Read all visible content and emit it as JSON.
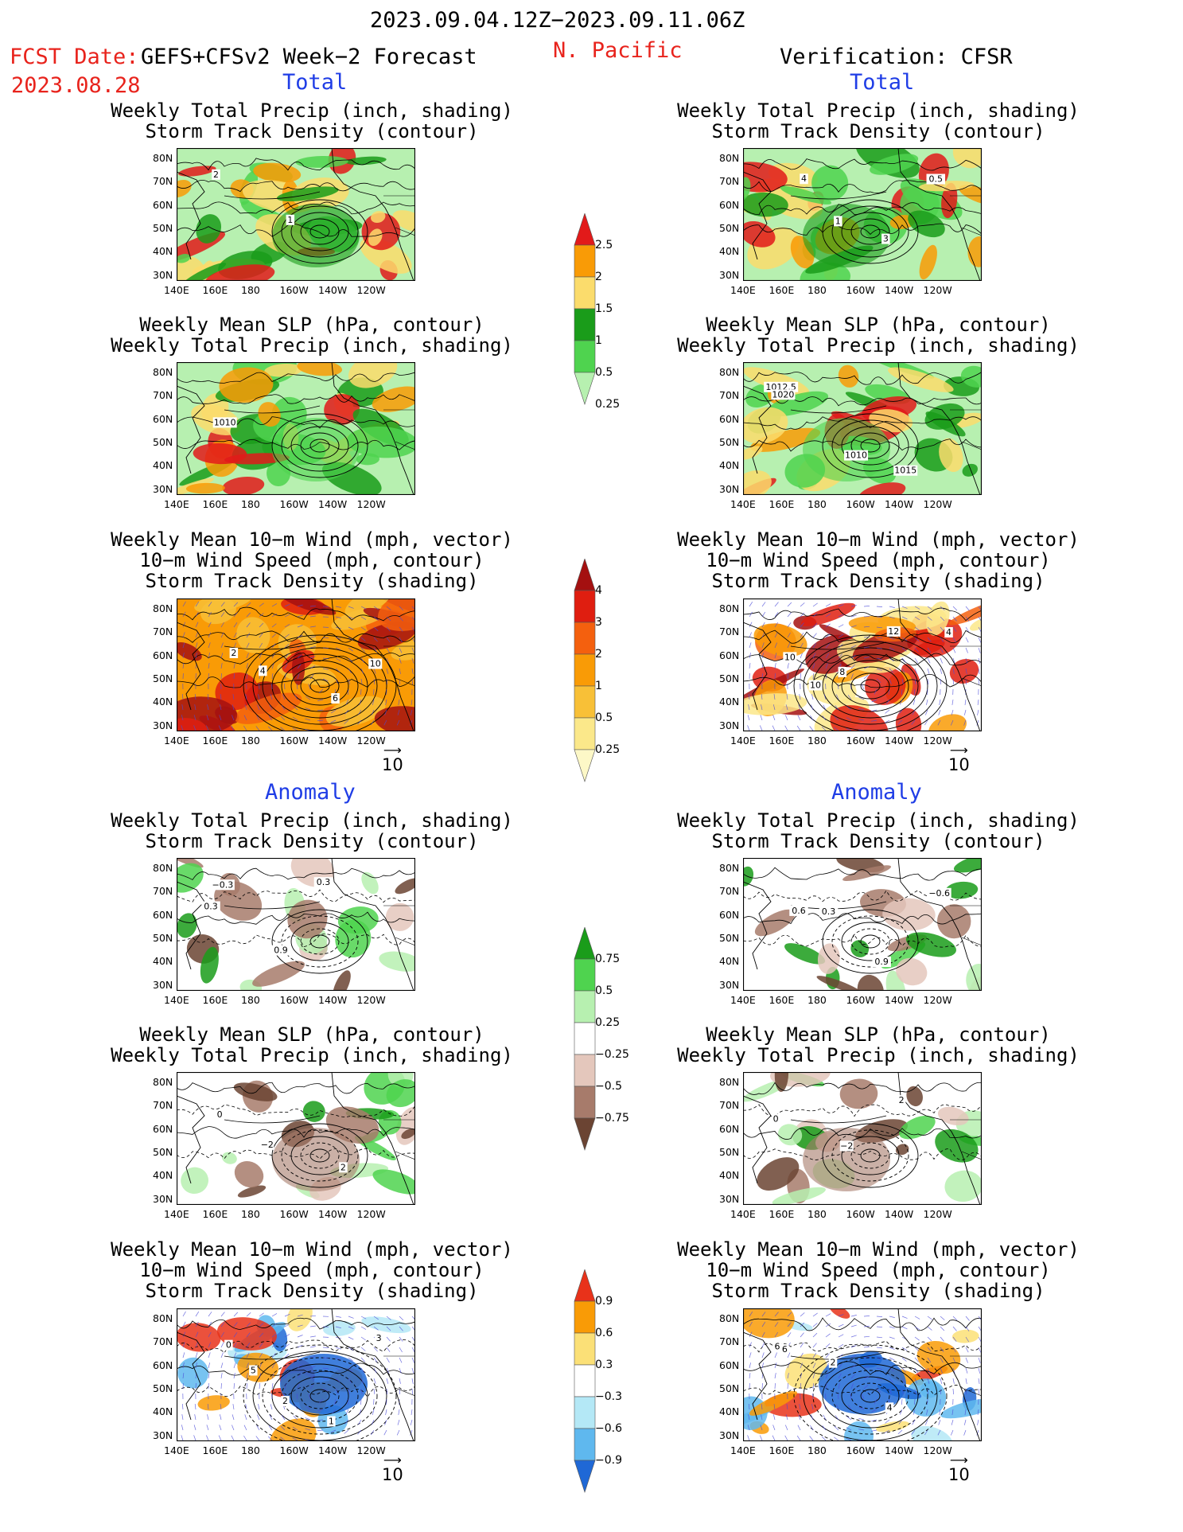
{
  "header": {
    "date_range": "2023.09.04.12Z−2023.09.11.06Z",
    "fcst_label": "FCST Date:",
    "fcst_model": "GEFS+CFSv2 Week−2 Forecast",
    "fcst_date": "2023.08.28",
    "region": "N. Pacific",
    "verification": "Verification: CFSR"
  },
  "sections": {
    "total": "Total",
    "anomaly": "Anomaly"
  },
  "titles": {
    "precip_track": [
      "Weekly Total Precip (inch, shading)",
      "Storm Track Density (contour)"
    ],
    "slp_precip": [
      "Weekly Mean SLP (hPa, contour)",
      "Weekly Total Precip (inch, shading)"
    ],
    "wind_track": [
      "Weekly Mean 10−m Wind (mph, vector)",
      "10−m Wind Speed (mph, contour)",
      "Storm Track Density (shading)"
    ]
  },
  "axes": {
    "lat_labels": [
      "80N",
      "70N",
      "60N",
      "50N",
      "40N",
      "30N"
    ],
    "lon_labels": [
      "140E",
      "160E",
      "180",
      "160W",
      "140W",
      "120W"
    ]
  },
  "vector_reference": "10",
  "colorbars": {
    "total_precip": {
      "labels": [
        "2.5",
        "2",
        "1.5",
        "1",
        "0.5",
        "0.25"
      ],
      "colors": [
        "#e21a1a",
        "#f99b06",
        "#fbdc6c",
        "#1a9c1a",
        "#4fd34f",
        "#b7f0b0"
      ]
    },
    "total_track": {
      "labels": [
        "4",
        "3",
        "2",
        "1",
        "0.5",
        "0.25"
      ],
      "colors": [
        "#a41010",
        "#df1e10",
        "#f4600e",
        "#f99b06",
        "#f8c037",
        "#fbe88a",
        "#fdf8c7"
      ]
    },
    "anom_precip": {
      "labels": [
        "0.75",
        "0.5",
        "0.25",
        "−0.25",
        "−0.5",
        "−0.75"
      ],
      "colors": [
        "#1a9c1a",
        "#4fd34f",
        "#b7f0b0",
        "#ffffff",
        "#e4c7bc",
        "#a77b6b",
        "#6b4433"
      ]
    },
    "anom_track": {
      "labels": [
        "0.9",
        "0.6",
        "0.3",
        "−0.3",
        "−0.6",
        "−0.9"
      ],
      "colors": [
        "#e8321a",
        "#f99b06",
        "#fbe077",
        "#ffffff",
        "#b4e8f6",
        "#5fb8ee",
        "#1f68d6"
      ]
    }
  },
  "panels": [
    {
      "id": "fcst-total-precip-track",
      "labels": [
        "2",
        "1"
      ]
    },
    {
      "id": "fcst-total-slp-precip",
      "labels": [
        "1010"
      ]
    },
    {
      "id": "fcst-total-wind-track",
      "labels": [
        "2",
        "4",
        "6",
        "10"
      ]
    },
    {
      "id": "fcst-anom-precip-track",
      "labels": [
        "0.3",
        "0.9",
        "0.3",
        "−0.3"
      ]
    },
    {
      "id": "fcst-anom-slp-precip",
      "labels": [
        "0",
        "−2",
        "2"
      ]
    },
    {
      "id": "fcst-anom-wind-track",
      "labels": [
        "0",
        "2",
        "1",
        "3",
        "5"
      ]
    },
    {
      "id": "ver-total-precip-track",
      "labels": [
        "4",
        "1",
        "3",
        "0.5"
      ]
    },
    {
      "id": "ver-total-slp-precip",
      "labels": [
        "1012.5",
        "1010",
        "1015",
        "1020"
      ]
    },
    {
      "id": "ver-total-wind-track",
      "labels": [
        "10",
        "8",
        "12",
        "4",
        "10"
      ]
    },
    {
      "id": "ver-anom-precip-track",
      "labels": [
        "0.6",
        "0.3",
        "0.9",
        "−0.6"
      ]
    },
    {
      "id": "ver-anom-slp-precip",
      "labels": [
        "0",
        "−2",
        "2"
      ]
    },
    {
      "id": "ver-anom-wind-track",
      "labels": [
        "6",
        "2",
        "4",
        "6"
      ]
    }
  ]
}
